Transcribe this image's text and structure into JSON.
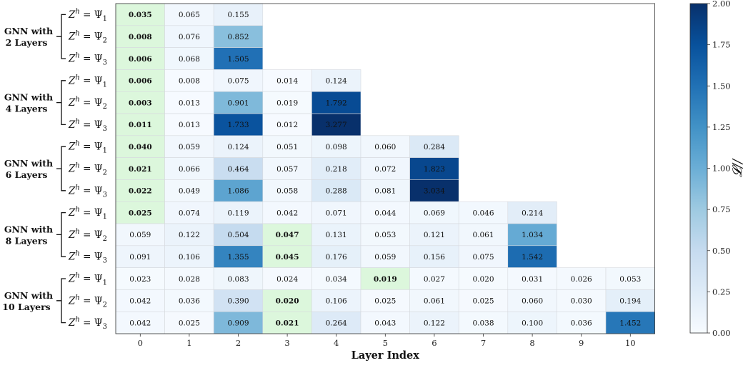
{
  "chart_data": {
    "type": "heatmap",
    "title": "",
    "xlabel": "Layer Index",
    "colorbar_label": "𝓛//",
    "colorbar_ticks": [
      "0.00",
      "0.25",
      "0.50",
      "0.75",
      "1.00",
      "1.25",
      "1.50",
      "1.75",
      "2.00"
    ],
    "zlim": [
      0,
      2
    ],
    "colormap": "Blues",
    "highlight_color": "#dcf7dc",
    "x_ticks": [
      "0",
      "1",
      "2",
      "3",
      "4",
      "5",
      "6",
      "7",
      "8",
      "9",
      "10"
    ],
    "row_labels": [
      "Z^h = Ψ_1",
      "Z^h = Ψ_2",
      "Z^h = Ψ_3"
    ],
    "groups": [
      {
        "label_line1": "GNN with",
        "label_line2": "2 Layers",
        "rows": [
          {
            "label": "Z^h = Ψ_1",
            "values": [
              "0.035",
              "0.065",
              "0.155"
            ],
            "bold": [
              0
            ]
          },
          {
            "label": "Z^h = Ψ_2",
            "values": [
              "0.008",
              "0.076",
              "0.852"
            ],
            "bold": [
              0
            ]
          },
          {
            "label": "Z^h = Ψ_3",
            "values": [
              "0.006",
              "0.068",
              "1.505"
            ],
            "bold": [
              0
            ]
          }
        ]
      },
      {
        "label_line1": "GNN with",
        "label_line2": "4 Layers",
        "rows": [
          {
            "label": "Z^h = Ψ_1",
            "values": [
              "0.006",
              "0.008",
              "0.075",
              "0.014",
              "0.124"
            ],
            "bold": [
              0
            ]
          },
          {
            "label": "Z^h = Ψ_2",
            "values": [
              "0.003",
              "0.013",
              "0.901",
              "0.019",
              "1.792"
            ],
            "bold": [
              0
            ]
          },
          {
            "label": "Z^h = Ψ_3",
            "values": [
              "0.011",
              "0.013",
              "1.733",
              "0.012",
              "3.277"
            ],
            "bold": [
              0
            ]
          }
        ]
      },
      {
        "label_line1": "GNN with",
        "label_line2": "6 Layers",
        "rows": [
          {
            "label": "Z^h = Ψ_1",
            "values": [
              "0.040",
              "0.059",
              "0.124",
              "0.051",
              "0.098",
              "0.060",
              "0.284"
            ],
            "bold": [
              0
            ]
          },
          {
            "label": "Z^h = Ψ_2",
            "values": [
              "0.021",
              "0.066",
              "0.464",
              "0.057",
              "0.218",
              "0.072",
              "1.823"
            ],
            "bold": [
              0
            ]
          },
          {
            "label": "Z^h = Ψ_3",
            "values": [
              "0.022",
              "0.049",
              "1.086",
              "0.058",
              "0.288",
              "0.081",
              "3.034"
            ],
            "bold": [
              0
            ]
          }
        ]
      },
      {
        "label_line1": "GNN with",
        "label_line2": "8 Layers",
        "rows": [
          {
            "label": "Z^h = Ψ_1",
            "values": [
              "0.025",
              "0.074",
              "0.119",
              "0.042",
              "0.071",
              "0.044",
              "0.069",
              "0.046",
              "0.214"
            ],
            "bold": [
              0
            ]
          },
          {
            "label": "Z^h = Ψ_2",
            "values": [
              "0.059",
              "0.122",
              "0.504",
              "0.047",
              "0.131",
              "0.053",
              "0.121",
              "0.061",
              "1.034"
            ],
            "bold": [
              3
            ]
          },
          {
            "label": "Z^h = Ψ_3",
            "values": [
              "0.091",
              "0.106",
              "1.355",
              "0.045",
              "0.176",
              "0.059",
              "0.156",
              "0.075",
              "1.542"
            ],
            "bold": [
              3
            ]
          }
        ]
      },
      {
        "label_line1": "GNN with",
        "label_line2": "10 Layers",
        "rows": [
          {
            "label": "Z^h = Ψ_1",
            "values": [
              "0.023",
              "0.028",
              "0.083",
              "0.024",
              "0.034",
              "0.019",
              "0.027",
              "0.020",
              "0.031",
              "0.026",
              "0.053"
            ],
            "bold": [
              5
            ]
          },
          {
            "label": "Z^h = Ψ_2",
            "values": [
              "0.042",
              "0.036",
              "0.390",
              "0.020",
              "0.106",
              "0.025",
              "0.061",
              "0.025",
              "0.060",
              "0.030",
              "0.194"
            ],
            "bold": [
              3
            ]
          },
          {
            "label": "Z^h = Ψ_3",
            "values": [
              "0.042",
              "0.025",
              "0.909",
              "0.021",
              "0.264",
              "0.043",
              "0.122",
              "0.038",
              "0.100",
              "0.036",
              "1.452"
            ],
            "bold": [
              3
            ]
          }
        ]
      }
    ]
  }
}
